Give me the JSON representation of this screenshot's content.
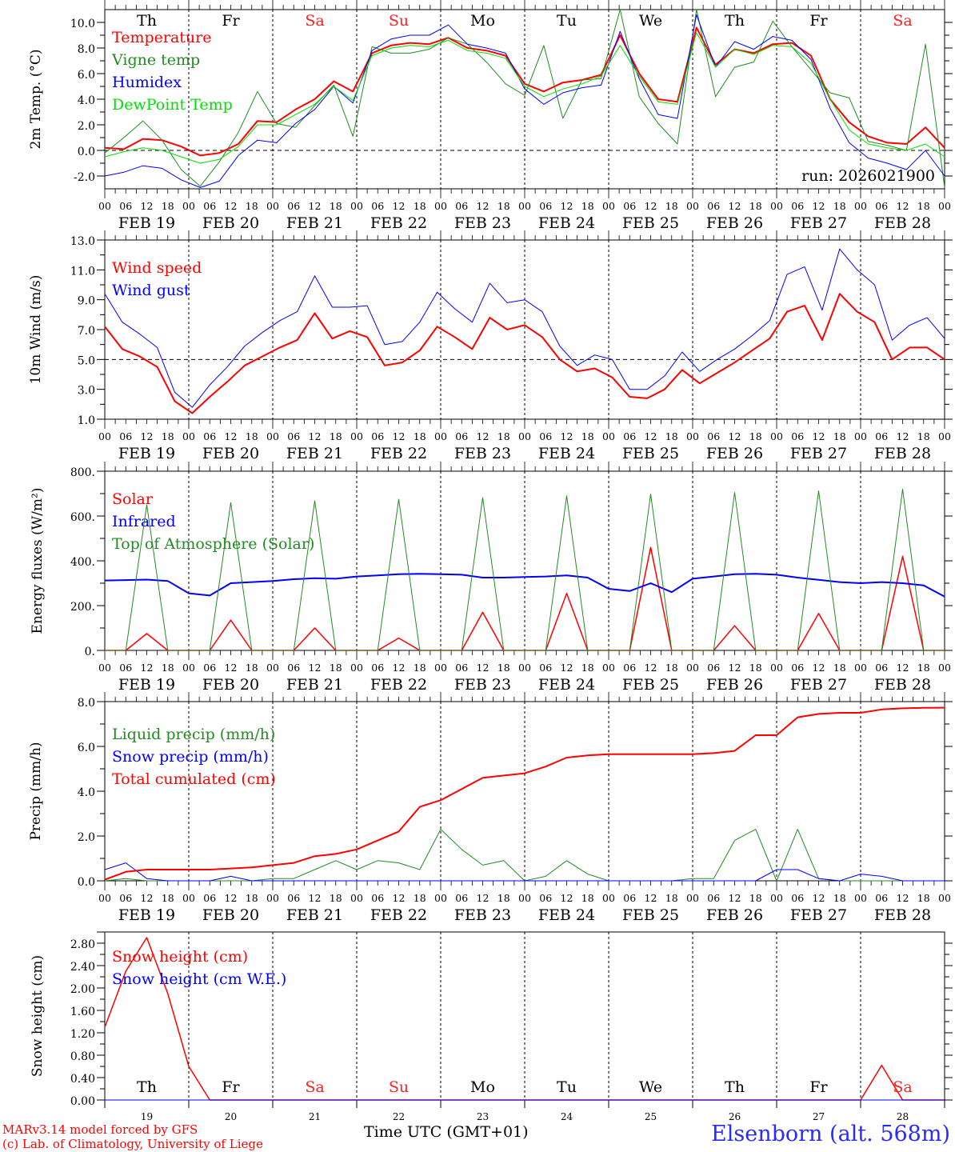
{
  "station": "Elsenborn (alt. 568m)",
  "credits": [
    "MARv3.14 model forced by GFS",
    "(c) Lab. of Climatology, University of Liege"
  ],
  "x_axis_title": "Time UTC (GMT+01)",
  "run_label": "run: 2026021900",
  "time_axis": {
    "hour_ticks": [
      "00",
      "06",
      "12",
      "18"
    ],
    "end_tick": "00",
    "dates": [
      "FEB 19",
      "FEB 20",
      "FEB 21",
      "FEB 22",
      "FEB 23",
      "FEB 24",
      "FEB 25",
      "FEB 26",
      "FEB 27",
      "FEB 28"
    ],
    "day_numbers": [
      "19",
      "20",
      "21",
      "22",
      "23",
      "24",
      "25",
      "26",
      "27",
      "28"
    ],
    "weekdays": [
      {
        "label": "Th",
        "weekend": false
      },
      {
        "label": "Fr",
        "weekend": false
      },
      {
        "label": "Sa",
        "weekend": true
      },
      {
        "label": "Su",
        "weekend": true
      },
      {
        "label": "Mo",
        "weekend": false
      },
      {
        "label": "Tu",
        "weekend": false
      },
      {
        "label": "We",
        "weekend": false
      },
      {
        "label": "Th",
        "weekend": false
      },
      {
        "label": "Fr",
        "weekend": false
      },
      {
        "label": "Sa",
        "weekend": true
      }
    ],
    "step_hours": 6,
    "start": "2026-02-19 00 UTC"
  },
  "colors": {
    "red": "#ff0000",
    "green": "#228b22",
    "lime": "#00e000",
    "blue": "#0000ff",
    "weekend": "#ff2020",
    "station": "#2a2aff"
  },
  "chart_data": [
    {
      "id": "temperature",
      "type": "line",
      "ylabel": "2m Temp. (°C)",
      "ylim": [
        -3.0,
        11.0
      ],
      "yticks": [
        "-2.0",
        "0.0",
        "2.0",
        "4.0",
        "6.0",
        "8.0",
        "10.0"
      ],
      "ytick_values": [
        -2,
        0,
        2,
        4,
        6,
        8,
        10
      ],
      "ref_line": 0,
      "series": [
        {
          "name": "Temperature",
          "color": "#ff0000",
          "width": 2,
          "values": [
            0.2,
            0.1,
            0.9,
            0.8,
            0.3,
            -0.4,
            -0.2,
            0.5,
            2.3,
            2.2,
            3.2,
            4.0,
            5.4,
            4.6,
            7.6,
            8.2,
            8.4,
            8.3,
            8.8,
            8.0,
            7.8,
            7.4,
            5.2,
            4.6,
            5.3,
            5.5,
            5.9,
            9.0,
            6.0,
            4.0,
            3.8,
            9.6,
            6.7,
            7.9,
            7.6,
            8.3,
            8.4,
            7.4,
            4.0,
            2.2,
            1.1,
            0.6,
            0.5,
            1.8,
            0.2
          ]
        },
        {
          "name": "Vigne temp",
          "color": "#228b22",
          "width": 1,
          "values": [
            -0.2,
            1.0,
            2.3,
            0.8,
            -1.5,
            -2.8,
            -0.9,
            1.4,
            4.6,
            2.1,
            1.8,
            3.5,
            5.1,
            1.1,
            8.1,
            7.6,
            7.6,
            7.9,
            8.8,
            8.3,
            6.9,
            5.2,
            4.3,
            8.2,
            2.5,
            5.5,
            5.6,
            11.0,
            4.2,
            2.1,
            0.5,
            11.0,
            4.2,
            6.5,
            6.9,
            10.1,
            8.1,
            6.3,
            4.5,
            4.1,
            0.7,
            0.4,
            0.0,
            8.3,
            -2.9
          ]
        },
        {
          "name": "Humidex",
          "color": "#0000ff",
          "width": 1,
          "values": [
            -2.0,
            -1.7,
            -1.2,
            -1.4,
            -2.3,
            -2.9,
            -2.4,
            -0.4,
            0.8,
            0.6,
            2.1,
            3.2,
            5.0,
            3.7,
            7.8,
            8.7,
            9.0,
            9.0,
            9.8,
            8.3,
            8.0,
            7.6,
            4.8,
            3.6,
            4.5,
            4.9,
            5.1,
            9.3,
            5.6,
            2.8,
            2.5,
            10.6,
            6.5,
            8.5,
            7.9,
            8.9,
            8.6,
            7.1,
            3.3,
            0.6,
            -0.6,
            -1.0,
            -1.5,
            0.0,
            -2.0
          ]
        },
        {
          "name": "DewPoint Temp",
          "color": "#00e000",
          "width": 1,
          "values": [
            -0.5,
            -0.1,
            0.2,
            0.0,
            -0.5,
            -1.0,
            -0.7,
            0.3,
            2.0,
            2.0,
            2.8,
            3.6,
            5.0,
            3.9,
            7.4,
            8.0,
            8.2,
            8.1,
            8.6,
            7.8,
            7.6,
            7.2,
            5.0,
            4.2,
            4.8,
            5.2,
            5.8,
            8.2,
            5.8,
            3.8,
            3.6,
            9.2,
            6.5,
            7.9,
            7.5,
            8.2,
            8.1,
            6.8,
            4.0,
            1.6,
            0.5,
            0.2,
            0.0,
            0.5,
            -0.5
          ]
        }
      ]
    },
    {
      "id": "wind",
      "type": "line",
      "ylabel": "10m Wind (m/s)",
      "ylim": [
        1.0,
        13.0
      ],
      "yticks": [
        "1.0",
        "3.0",
        "5.0",
        "7.0",
        "9.0",
        "11.0",
        "13.0"
      ],
      "ytick_values": [
        1,
        3,
        5,
        7,
        9,
        11,
        13
      ],
      "ref_line": 5,
      "series": [
        {
          "name": "Wind speed",
          "color": "#ff0000",
          "width": 2,
          "values": [
            7.2,
            5.7,
            5.2,
            4.5,
            2.2,
            1.4,
            2.5,
            3.5,
            4.6,
            5.2,
            5.8,
            6.3,
            8.1,
            6.4,
            6.9,
            6.5,
            4.6,
            4.8,
            5.6,
            7.2,
            6.5,
            5.7,
            7.8,
            7.0,
            7.3,
            6.5,
            5.0,
            4.2,
            4.4,
            3.8,
            2.5,
            2.4,
            3.0,
            4.3,
            3.4,
            4.1,
            4.8,
            5.6,
            6.4,
            8.2,
            8.6,
            6.3,
            9.4,
            8.2,
            7.5,
            5.0,
            5.8,
            5.8,
            5.0
          ]
        },
        {
          "name": "Wind gust",
          "color": "#0000ff",
          "width": 1,
          "values": [
            9.4,
            7.5,
            6.7,
            5.8,
            2.8,
            1.8,
            3.3,
            4.5,
            5.9,
            6.8,
            7.6,
            8.2,
            10.6,
            8.5,
            8.5,
            8.6,
            6.0,
            6.2,
            7.5,
            9.5,
            8.4,
            7.5,
            10.1,
            8.8,
            9.0,
            8.2,
            5.9,
            4.6,
            5.3,
            5.0,
            3.0,
            3.0,
            3.9,
            5.5,
            4.2,
            5.0,
            5.7,
            6.6,
            7.6,
            10.7,
            11.2,
            8.3,
            12.4,
            11.0,
            10.0,
            6.3,
            7.3,
            7.8,
            6.4
          ]
        }
      ]
    },
    {
      "id": "energy",
      "type": "line",
      "ylabel": "Energy fluxes (W/m²)",
      "ylim": [
        0,
        800
      ],
      "yticks": [
        "0.",
        "200.",
        "400.",
        "600.",
        "800."
      ],
      "ytick_values": [
        0,
        200,
        400,
        600,
        800
      ],
      "series": [
        {
          "name": "Solar",
          "color": "#ff0000",
          "width": 1.5,
          "values": [
            0,
            0,
            75,
            0,
            0,
            0,
            135,
            0,
            0,
            0,
            100,
            0,
            0,
            0,
            55,
            0,
            0,
            0,
            170,
            0,
            0,
            0,
            255,
            0,
            0,
            0,
            460,
            0,
            0,
            0,
            110,
            0,
            0,
            0,
            165,
            0,
            0,
            0,
            420,
            0,
            0
          ]
        },
        {
          "name": "Infrared",
          "color": "#0000ff",
          "width": 2,
          "values": [
            312,
            314,
            316,
            310,
            255,
            245,
            300,
            305,
            310,
            318,
            322,
            320,
            330,
            335,
            340,
            342,
            340,
            338,
            325,
            325,
            328,
            330,
            335,
            325,
            275,
            265,
            300,
            260,
            320,
            330,
            340,
            342,
            338,
            325,
            315,
            305,
            300,
            305,
            300,
            290,
            240
          ]
        },
        {
          "name": "Top of Atmosphere (Solar)",
          "color": "#228b22",
          "width": 1,
          "values": [
            0,
            0,
            650,
            0,
            0,
            0,
            660,
            0,
            0,
            0,
            668,
            0,
            0,
            0,
            675,
            0,
            0,
            0,
            682,
            0,
            0,
            0,
            690,
            0,
            0,
            0,
            698,
            0,
            0,
            0,
            705,
            0,
            0,
            0,
            712,
            0,
            0,
            0,
            720,
            0,
            0
          ]
        }
      ]
    },
    {
      "id": "precip",
      "type": "line",
      "ylabel": "Precip (mm/h)",
      "ylim": [
        0,
        8.0
      ],
      "yticks": [
        "0.0",
        "2.0",
        "4.0",
        "6.0",
        "8.0"
      ],
      "ytick_values": [
        0,
        2,
        4,
        6,
        8
      ],
      "series": [
        {
          "name": "Liquid precip (mm/h)",
          "color": "#228b22",
          "width": 1,
          "values": [
            0.0,
            0.1,
            0.0,
            0.0,
            0.0,
            0.0,
            0.0,
            0.0,
            0.1,
            0.1,
            0.5,
            0.9,
            0.5,
            0.9,
            0.8,
            0.5,
            2.3,
            1.4,
            0.7,
            0.9,
            0.0,
            0.2,
            0.9,
            0.3,
            0.0,
            0.0,
            0.0,
            0.0,
            0.1,
            0.1,
            1.8,
            2.3,
            0.0,
            2.3,
            0.1,
            0.0,
            0.0,
            0.0,
            0.0,
            0.0,
            0.0
          ]
        },
        {
          "name": "Snow precip (mm/h)",
          "color": "#0000ff",
          "width": 1,
          "values": [
            0.5,
            0.8,
            0.1,
            0.0,
            0.0,
            0.0,
            0.2,
            0.0,
            0.0,
            0.0,
            0.0,
            0.0,
            0.0,
            0.0,
            0.0,
            0.0,
            0.0,
            0.0,
            0.0,
            0.0,
            0.0,
            0.0,
            0.0,
            0.0,
            0.0,
            0.0,
            0.0,
            0.0,
            0.0,
            0.0,
            0.0,
            0.0,
            0.5,
            0.5,
            0.1,
            0.0,
            0.3,
            0.2,
            0.0,
            0.0,
            0.0
          ]
        },
        {
          "name": "Total cumulated (cm)",
          "color": "#ff0000",
          "width": 2,
          "values": [
            0.05,
            0.4,
            0.5,
            0.5,
            0.5,
            0.5,
            0.55,
            0.6,
            0.7,
            0.8,
            1.1,
            1.2,
            1.4,
            1.8,
            2.2,
            3.3,
            3.6,
            4.1,
            4.6,
            4.7,
            4.8,
            5.1,
            5.5,
            5.6,
            5.65,
            5.65,
            5.65,
            5.65,
            5.65,
            5.7,
            5.8,
            6.5,
            6.5,
            7.3,
            7.45,
            7.5,
            7.5,
            7.65,
            7.7,
            7.72,
            7.73
          ]
        }
      ]
    },
    {
      "id": "snow",
      "type": "line",
      "ylabel": "Snow height (cm)",
      "ylim": [
        0,
        3.0
      ],
      "yticks": [
        "0.00",
        "0.40",
        "0.80",
        "1.20",
        "1.60",
        "2.00",
        "2.40",
        "2.80"
      ],
      "ytick_values": [
        0,
        0.4,
        0.8,
        1.2,
        1.6,
        2.0,
        2.4,
        2.8
      ],
      "series": [
        {
          "name": "Snow height (cm)",
          "color": "#ff0000",
          "width": 1.5,
          "values": [
            1.3,
            2.3,
            2.9,
            1.9,
            0.6,
            0.0,
            0.0,
            0.0,
            0.0,
            0.0,
            0.0,
            0.0,
            0.0,
            0.0,
            0.0,
            0.0,
            0.0,
            0.0,
            0.0,
            0.0,
            0.0,
            0.0,
            0.0,
            0.0,
            0.0,
            0.0,
            0.0,
            0.0,
            0.0,
            0.0,
            0.0,
            0.0,
            0.0,
            0.0,
            0.0,
            0.0,
            0.0,
            0.62,
            0.0,
            0.0,
            0.0
          ]
        },
        {
          "name": "Snow height (cm W.E.)",
          "color": "#0000ff",
          "width": 1,
          "values": [
            0.0,
            0.0,
            0.0,
            0.0,
            0.0,
            0.0,
            0.0,
            0.0,
            0.0,
            0.0,
            0.0,
            0.0,
            0.0,
            0.0,
            0.0,
            0.0,
            0.0,
            0.0,
            0.0,
            0.0,
            0.0,
            0.0,
            0.0,
            0.0,
            0.0,
            0.0,
            0.0,
            0.0,
            0.0,
            0.0,
            0.0,
            0.0,
            0.0,
            0.0,
            0.0,
            0.0,
            0.0,
            0.0,
            0.0,
            0.0,
            0.0
          ]
        }
      ]
    }
  ]
}
